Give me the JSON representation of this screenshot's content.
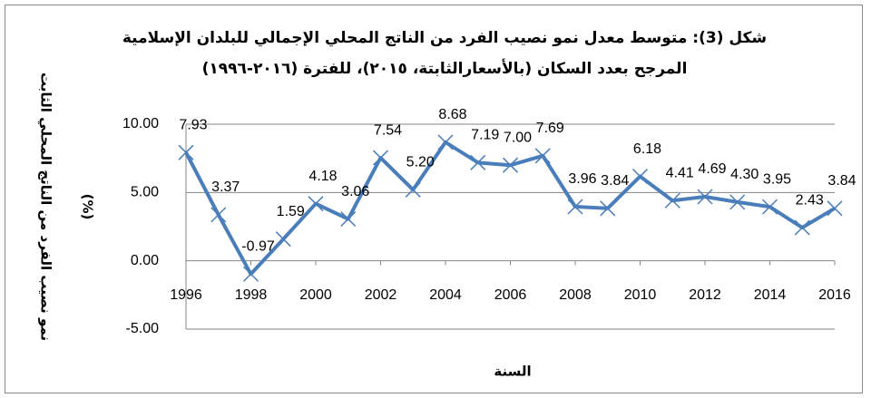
{
  "chart_data": {
    "type": "line",
    "title": "شكل (3): متوسط معدل نمو نصيب الفرد من الناتج المحلي الإجمالي للبلدان الإسلامية",
    "subtitle": "المرجح بعدد السكان (بالأسعارالثابتة، ٢٠١٥)، للفترة (٢٠١٦-١٩٩٦)",
    "xlabel": "السنة",
    "ylabel": [
      "نمو نصيب الفرد من الناتج المحلي الثابت",
      "(%)"
    ],
    "x": [
      1996,
      1997,
      1998,
      1999,
      2000,
      2001,
      2002,
      2003,
      2004,
      2005,
      2006,
      2007,
      2008,
      2009,
      2010,
      2011,
      2012,
      2013,
      2014,
      2015,
      2016
    ],
    "series": [
      {
        "color": "#4a7ebb",
        "values": [
          7.93,
          3.37,
          -0.97,
          1.59,
          4.18,
          3.06,
          7.54,
          5.2,
          8.68,
          7.19,
          7.0,
          7.69,
          3.96,
          3.84,
          6.18,
          4.41,
          4.69,
          4.3,
          3.95,
          2.43,
          3.84
        ],
        "value_labels": [
          "7.93",
          "3.37",
          "-0.97",
          "1.59",
          "4.18",
          "3.06",
          "7.54",
          "5.20",
          "8.68",
          "7.19",
          "7.00",
          "7.69",
          "3.96",
          "3.84",
          "6.18",
          "4.41",
          "4.69",
          "4.30",
          "3.95",
          "2.43",
          "3.84"
        ]
      }
    ],
    "xlim": [
      1996,
      2016
    ],
    "xticks": [
      1996,
      1998,
      2000,
      2002,
      2004,
      2006,
      2008,
      2010,
      2012,
      2014,
      2016
    ],
    "ylim": [
      -5,
      10
    ],
    "yticks": [
      {
        "value": -5,
        "label": "-5.00"
      },
      {
        "value": 0,
        "label": "0.00"
      },
      {
        "value": 5,
        "label": "5.00"
      },
      {
        "value": 10,
        "label": "10.00"
      }
    ],
    "grid": true
  }
}
